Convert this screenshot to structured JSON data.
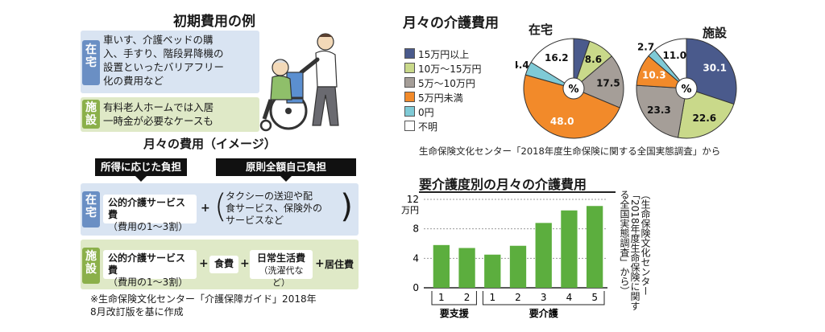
{
  "left": {
    "initial_title": "初期費用の例",
    "home_label": "在宅",
    "home_text": [
      "車いす、介護ベッドの購",
      "入、手すり、階段昇降機の",
      "設置といったバリアフリー",
      "化の費用など"
    ],
    "facility_label": "施設",
    "facility_text": [
      "有料老人ホームでは入居",
      "一時金が必要なケースも"
    ],
    "monthly_title": "月々の費用（イメージ）",
    "hdr_income": "所得に応じた負担",
    "hdr_self": "原則全額自己負担",
    "home_public": [
      "公的介護サービス費",
      "（費用の1～3割）"
    ],
    "plus": "+",
    "home_extra": [
      "タクシーの送迎や配",
      "食サービス、保険外の",
      "サービスなど"
    ],
    "fac_public": [
      "公的介護サービス費",
      "（費用の1～3割）"
    ],
    "food": "食費",
    "daily": [
      "日常生活費",
      "（洗濯代など）"
    ],
    "residence": "居住費",
    "note": [
      "※生命保険文化センター「介護保障ガイド」2018年",
      "8月改訂版を基に作成"
    ]
  },
  "monthly_cost": {
    "title": "月々の介護費用",
    "home_title": "在宅",
    "facility_title": "施設",
    "center": "%",
    "source": "生命保険文化センター「2018年度生命保険に関する全国実態調査」から"
  },
  "bar_section": {
    "title": "要介護度別の月々の介護費用",
    "unit": "万円",
    "group_support": "要支援",
    "group_care": "要介護",
    "source_vertical": "（生命保険文化センター「2018年度生命保険に関する全国実態調査」から）"
  },
  "chart_data": [
    {
      "type": "pie",
      "title": "在宅",
      "categories": [
        "15万円以上",
        "10万～15万円",
        "5万～10万円",
        "5万円未満",
        "0円",
        "不明"
      ],
      "values": [
        5.2,
        8.6,
        17.5,
        48.0,
        4.4,
        16.2
      ],
      "labels": [
        "5.2",
        "8.6",
        "17.5",
        "48.0",
        "4.4",
        "16.2"
      ],
      "colors": [
        "#4a5a8c",
        "#c9d98a",
        "#a59e98",
        "#f28a2a",
        "#7fcad6",
        "#ffffff"
      ]
    },
    {
      "type": "pie",
      "title": "施設",
      "categories": [
        "15万円以上",
        "10万～15万円",
        "5万～10万円",
        "5万円未満",
        "0円",
        "不明"
      ],
      "values": [
        30.1,
        22.6,
        23.3,
        10.3,
        2.7,
        11.0
      ],
      "labels": [
        "30.1",
        "22.6",
        "23.3",
        "10.3",
        "2.7",
        "11.0"
      ],
      "colors": [
        "#4a5a8c",
        "#c9d98a",
        "#a59e98",
        "#f28a2a",
        "#7fcad6",
        "#ffffff"
      ]
    },
    {
      "type": "bar",
      "title": "要介護度別の月々の介護費用",
      "ylabel": "万円",
      "ylim": [
        0,
        12
      ],
      "yticks": [
        "0",
        "4",
        "8",
        "12"
      ],
      "categories": [
        "1",
        "2",
        "1",
        "2",
        "3",
        "4",
        "5"
      ],
      "values": [
        5.8,
        5.4,
        4.5,
        5.7,
        8.8,
        10.5,
        11.1
      ],
      "color": "#5cae3e"
    }
  ]
}
